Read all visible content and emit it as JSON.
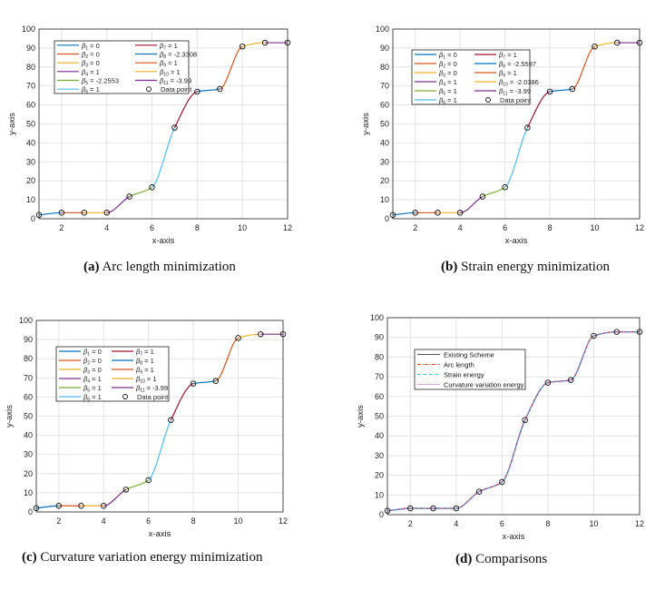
{
  "palette": {
    "blue": "#0072BD",
    "orange": "#D95319",
    "yellow": "#EDB120",
    "purple": "#7E2F8E",
    "green": "#77AC30",
    "cyan": "#4DBEEE",
    "red": "#A2142F"
  },
  "chart_data": [
    {
      "id": "a",
      "type": "line",
      "caption_label": "(a)",
      "caption_text": "Arc length minimization",
      "xlabel": "x-axis",
      "ylabel": "y-axis",
      "xlim": [
        1,
        12
      ],
      "ylim": [
        0,
        100
      ],
      "xticks": [
        2,
        4,
        6,
        8,
        10,
        12
      ],
      "yticks": [
        0,
        10,
        20,
        30,
        40,
        50,
        60,
        70,
        80,
        90,
        100
      ],
      "grid": true,
      "legend_position": "top-left",
      "points": {
        "x": [
          1,
          2,
          3,
          4,
          5,
          6,
          7,
          8,
          9,
          10,
          11,
          12
        ],
        "y": [
          2,
          3.2,
          3.2,
          3.2,
          11.7,
          16.6,
          48,
          67,
          68.4,
          90.8,
          92.8,
          92.8
        ]
      },
      "segment_colors": [
        "#0072BD",
        "#D95319",
        "#EDB120",
        "#7E2F8E",
        "#77AC30",
        "#4DBEEE",
        "#A2142F",
        "#0072BD",
        "#D95319",
        "#EDB120",
        "#7E2F8E"
      ],
      "legend": [
        {
          "sym": "β",
          "sub": "1",
          "value": "= 0",
          "color": "#0072BD"
        },
        {
          "sym": "β",
          "sub": "2",
          "value": "= 0",
          "color": "#D95319"
        },
        {
          "sym": "β",
          "sub": "3",
          "value": "= 0",
          "color": "#EDB120"
        },
        {
          "sym": "β",
          "sub": "4",
          "value": "= 1",
          "color": "#7E2F8E"
        },
        {
          "sym": "β",
          "sub": "5",
          "value": "= -2.2553",
          "color": "#77AC30"
        },
        {
          "sym": "β",
          "sub": "6",
          "value": "= 1",
          "color": "#4DBEEE"
        },
        {
          "sym": "β",
          "sub": "7",
          "value": "= 1",
          "color": "#A2142F"
        },
        {
          "sym": "β",
          "sub": "8",
          "value": "= -2.3308",
          "color": "#0072BD"
        },
        {
          "sym": "β",
          "sub": "9",
          "value": "= 1",
          "color": "#D95319"
        },
        {
          "sym": "β",
          "sub": "10",
          "value": "= 1",
          "color": "#EDB120"
        },
        {
          "sym": "β",
          "sub": "11",
          "value": "= -3.99",
          "color": "#7E2F8E"
        }
      ],
      "marker_label": "Data point"
    },
    {
      "id": "b",
      "type": "line",
      "caption_label": "(b)",
      "caption_text": "Strain energy minimization",
      "xlabel": "x-axis",
      "ylabel": "y-axis",
      "xlim": [
        1,
        12
      ],
      "ylim": [
        0,
        100
      ],
      "xticks": [
        2,
        4,
        6,
        8,
        10,
        12
      ],
      "yticks": [
        0,
        10,
        20,
        30,
        40,
        50,
        60,
        70,
        80,
        90,
        100
      ],
      "grid": true,
      "legend_position": "top-left",
      "points": {
        "x": [
          1,
          2,
          3,
          4,
          5,
          6,
          7,
          8,
          9,
          10,
          11,
          12
        ],
        "y": [
          2,
          3.2,
          3.2,
          3.2,
          11.7,
          16.6,
          48,
          67,
          68.4,
          90.8,
          92.8,
          92.8
        ]
      },
      "segment_colors": [
        "#0072BD",
        "#D95319",
        "#EDB120",
        "#7E2F8E",
        "#77AC30",
        "#4DBEEE",
        "#A2142F",
        "#0072BD",
        "#D95319",
        "#EDB120",
        "#7E2F8E"
      ],
      "legend": [
        {
          "sym": "β",
          "sub": "1",
          "value": "= 0",
          "color": "#0072BD"
        },
        {
          "sym": "β",
          "sub": "2",
          "value": "= 0",
          "color": "#D95319"
        },
        {
          "sym": "β",
          "sub": "3",
          "value": "= 0",
          "color": "#EDB120"
        },
        {
          "sym": "β",
          "sub": "4",
          "value": "= 1",
          "color": "#7E2F8E"
        },
        {
          "sym": "β",
          "sub": "5",
          "value": "= 1",
          "color": "#77AC30"
        },
        {
          "sym": "β",
          "sub": "6",
          "value": "= 1",
          "color": "#4DBEEE"
        },
        {
          "sym": "β",
          "sub": "7",
          "value": "= 1",
          "color": "#A2142F"
        },
        {
          "sym": "β",
          "sub": "8",
          "value": "= -2.5597",
          "color": "#0072BD"
        },
        {
          "sym": "β",
          "sub": "9",
          "value": "= 1",
          "color": "#D95319"
        },
        {
          "sym": "β",
          "sub": "10",
          "value": "= -2.0386",
          "color": "#EDB120"
        },
        {
          "sym": "β",
          "sub": "11",
          "value": "= -3.99",
          "color": "#7E2F8E"
        }
      ],
      "marker_label": "Data point"
    },
    {
      "id": "c",
      "type": "line",
      "caption_label": "(c)",
      "caption_text": "Curvature variation energy minimization",
      "xlabel": "x-axis",
      "ylabel": "y-axis",
      "xlim": [
        1,
        12
      ],
      "ylim": [
        0,
        100
      ],
      "xticks": [
        2,
        4,
        6,
        8,
        10,
        12
      ],
      "yticks": [
        0,
        10,
        20,
        30,
        40,
        50,
        60,
        70,
        80,
        90,
        100
      ],
      "grid": true,
      "legend_position": "top-left",
      "points": {
        "x": [
          1,
          2,
          3,
          4,
          5,
          6,
          7,
          8,
          9,
          10,
          11,
          12
        ],
        "y": [
          2,
          3.2,
          3.2,
          3.2,
          11.7,
          16.6,
          48,
          67,
          68.4,
          90.8,
          92.8,
          92.8
        ]
      },
      "segment_colors": [
        "#0072BD",
        "#D95319",
        "#EDB120",
        "#7E2F8E",
        "#77AC30",
        "#4DBEEE",
        "#A2142F",
        "#0072BD",
        "#D95319",
        "#EDB120",
        "#7E2F8E"
      ],
      "legend": [
        {
          "sym": "β",
          "sub": "1",
          "value": "= 0",
          "color": "#0072BD"
        },
        {
          "sym": "β",
          "sub": "2",
          "value": "= 0",
          "color": "#D95319"
        },
        {
          "sym": "β",
          "sub": "3",
          "value": "= 0",
          "color": "#EDB120"
        },
        {
          "sym": "β",
          "sub": "4",
          "value": "= 1",
          "color": "#7E2F8E"
        },
        {
          "sym": "β",
          "sub": "5",
          "value": "= 1",
          "color": "#77AC30"
        },
        {
          "sym": "β",
          "sub": "6",
          "value": "= 1",
          "color": "#4DBEEE"
        },
        {
          "sym": "β",
          "sub": "7",
          "value": "= 1",
          "color": "#A2142F"
        },
        {
          "sym": "β",
          "sub": "8",
          "value": "= 1",
          "color": "#0072BD"
        },
        {
          "sym": "β",
          "sub": "9",
          "value": "= 1",
          "color": "#D95319"
        },
        {
          "sym": "β",
          "sub": "10",
          "value": "= 1",
          "color": "#EDB120"
        },
        {
          "sym": "β",
          "sub": "11",
          "value": "= -3.99",
          "color": "#7E2F8E"
        }
      ],
      "marker_label": "Data point"
    },
    {
      "id": "d",
      "type": "line",
      "caption_label": "(d)",
      "caption_text": "Comparisons",
      "xlabel": "x-axis",
      "ylabel": "y-axis",
      "xlim": [
        1,
        12
      ],
      "ylim": [
        0,
        100
      ],
      "xticks": [
        2,
        4,
        6,
        8,
        10,
        12
      ],
      "yticks": [
        0,
        10,
        20,
        30,
        40,
        50,
        60,
        70,
        80,
        90,
        100
      ],
      "grid": true,
      "legend_position": "top-left",
      "points": {
        "x": [
          1,
          2,
          3,
          4,
          5,
          6,
          7,
          8,
          9,
          10,
          11,
          12
        ],
        "y": [
          2,
          3.2,
          3.2,
          3.2,
          11.7,
          16.6,
          48,
          67,
          68.4,
          90.8,
          92.8,
          92.8
        ]
      },
      "series": [
        {
          "name": "Existing Scheme",
          "color": "#555555",
          "dash": "solid"
        },
        {
          "name": "Arc length",
          "color": "#E0401A",
          "dash": "dashdot"
        },
        {
          "name": "Strain energy",
          "color": "#30C8E0",
          "dash": "dashed"
        },
        {
          "name": "Curvature variation energy",
          "color": "#C040E0",
          "dash": "dotted"
        }
      ]
    }
  ]
}
